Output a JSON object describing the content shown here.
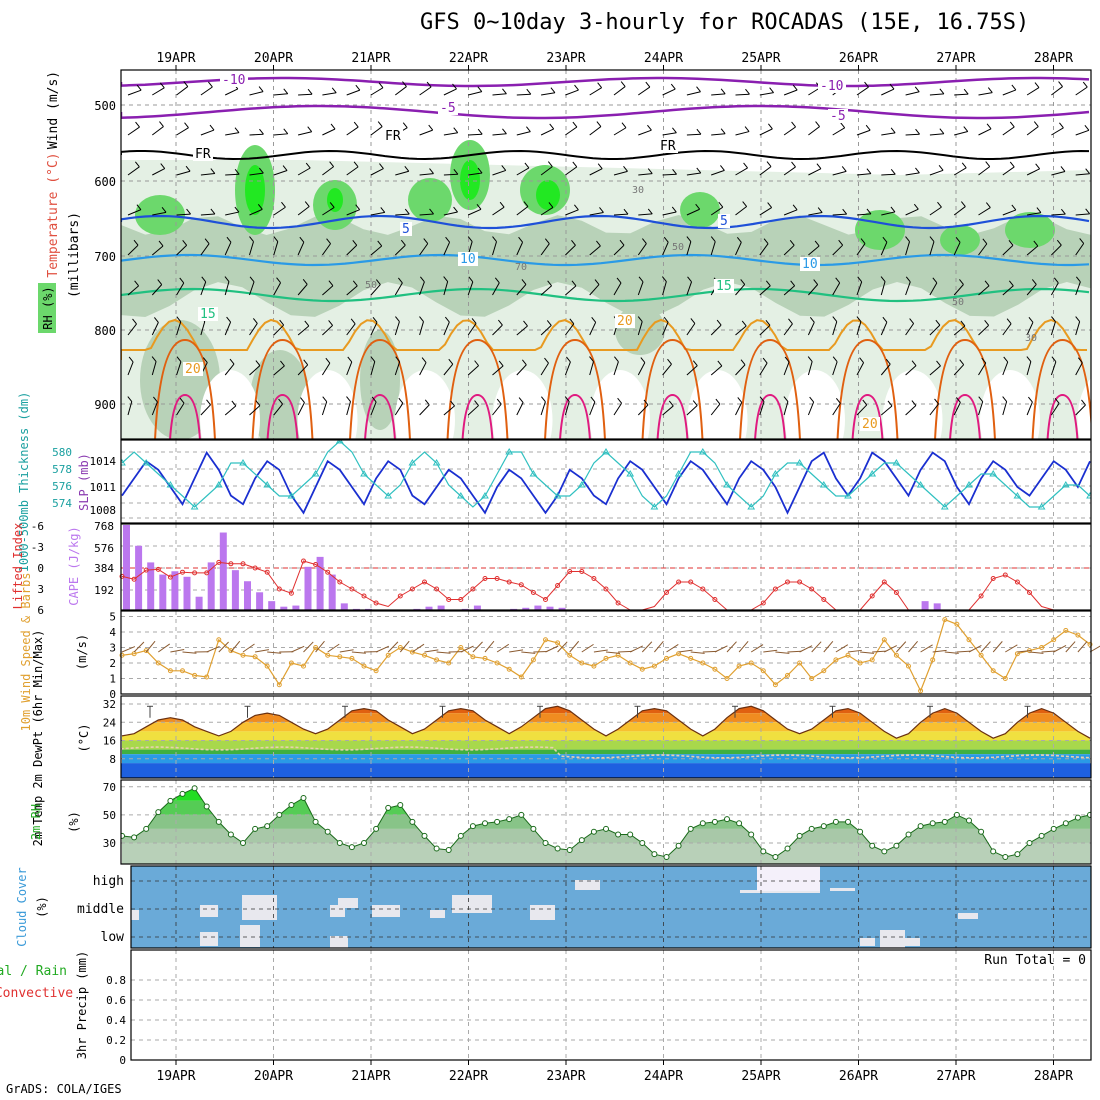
{
  "title": "GFS 0~10day 3-hourly for ROCADAS (15E, 16.75S)",
  "credit": "GrADS: COLA/IGES",
  "dates": [
    "19APR",
    "20APR",
    "21APR",
    "22APR",
    "23APR",
    "24APR",
    "25APR",
    "26APR",
    "27APR",
    "28APR"
  ],
  "colors": {
    "rh_light": "#e4f0e4",
    "rh_mid": "#b8d2b8",
    "rh_green": "#6cd86c",
    "rh_bright": "#22e822",
    "t_m10": "#8a1fb0",
    "t_m5": "#8a1fb0",
    "t_5": "#1e50d8",
    "t_10": "#2a9ae6",
    "t_15": "#20c080",
    "t_20": "#e89a20",
    "t_25": "#e06010",
    "t_30": "#e01a80",
    "cape": "#bb77ee",
    "li": "#e03030",
    "wind": "#e0a030",
    "slp": "#1a2fd0",
    "thk": "#30c0c0",
    "rh2m": "#22cc22",
    "cloud": "#6aaad8",
    "cloud_gap": "#e8e8ee"
  },
  "panels": {
    "upper": {
      "ylabel_main": "(millibars)",
      "ylabel_wind": "Wind (m/s)",
      "ylabel_temp": "Temperature (°C)",
      "ylabel_rh": "RH (%)",
      "yticks": [
        "500",
        "600",
        "700",
        "800",
        "900"
      ],
      "contour_labels": [
        "-10",
        "-5",
        "FR",
        "5",
        "10",
        "15",
        "20",
        "30",
        "50",
        "70"
      ]
    },
    "thickness": {
      "ylabel_left": "1000-500mb Thickness (dm)",
      "ylabel_right": "SLP (mb)",
      "left_ticks": [
        "580",
        "578",
        "576",
        "574"
      ],
      "right_ticks": [
        "1014",
        "1011",
        "1008"
      ]
    },
    "cape": {
      "ylabel_left": "Lifted Index",
      "ylabel_right": "CAPE (J/kg)",
      "li_ticks": [
        "-6",
        "-3",
        "0",
        "3",
        "6"
      ],
      "cape_ticks": [
        "768",
        "576",
        "384",
        "192"
      ]
    },
    "wind": {
      "ylabel": "10m Wind Speed & Barbs",
      "unit": "(m/s)",
      "ticks": [
        "5",
        "4",
        "3",
        "2",
        "1",
        "0"
      ]
    },
    "temp": {
      "ylabel": "2m Temp 2m DewPt (6hr Min/Max)",
      "unit": "(°C)",
      "ticks": [
        "32",
        "24",
        "16",
        "8"
      ]
    },
    "rh": {
      "ylabel": "2m RH",
      "unit": "(%)",
      "ticks": [
        "70",
        "50",
        "30"
      ]
    },
    "cloud": {
      "ylabel": "Cloud Cover",
      "unit": "(%)",
      "levels": [
        "high",
        "middle",
        "low"
      ]
    },
    "precip": {
      "ylabel_total": "Total / Rain",
      "ylabel_conv": "Convective",
      "ylabel_axis": "3hr Precip (mm)",
      "ticks": [
        "0.8",
        "0.6",
        "0.4",
        "0.2",
        "0"
      ],
      "run_total": "Run Total = 0"
    }
  },
  "chart_data": {
    "type": "line",
    "x": [
      "19APR",
      "20APR",
      "21APR",
      "22APR",
      "23APR",
      "24APR",
      "25APR",
      "26APR",
      "27APR",
      "28APR"
    ],
    "slp_mb": [
      1010,
      1012,
      1014,
      1013,
      1011,
      1009,
      1012,
      1015,
      1013,
      1010,
      1009,
      1012,
      1014,
      1013,
      1010,
      1008,
      1011,
      1014,
      1013,
      1011,
      1009,
      1012,
      1014,
      1013,
      1010,
      1009,
      1011,
      1013,
      1012,
      1010,
      1008,
      1011,
      1013,
      1012,
      1010,
      1008,
      1010,
      1013,
      1012,
      1010,
      1009,
      1012,
      1014,
      1013,
      1011,
      1009,
      1012,
      1014,
      1013,
      1011,
      1009,
      1012,
      1014,
      1013,
      1011,
      1008,
      1011,
      1014,
      1015,
      1012,
      1010,
      1012,
      1015,
      1014,
      1012,
      1010,
      1013,
      1015,
      1014,
      1011,
      1009,
      1012,
      1014,
      1013,
      1011,
      1010,
      1012,
      1014,
      1013,
      1011,
      1014
    ],
    "thickness_dm": [
      579,
      580,
      579,
      578,
      577,
      576,
      575,
      576,
      577,
      579,
      579,
      578,
      577,
      576,
      576,
      577,
      578,
      580,
      581,
      580,
      578,
      577,
      576,
      577,
      579,
      580,
      579,
      577,
      576,
      575,
      576,
      578,
      580,
      580,
      578,
      577,
      576,
      576,
      577,
      579,
      580,
      579,
      578,
      576,
      575,
      576,
      578,
      580,
      580,
      579,
      577,
      576,
      575,
      576,
      578,
      579,
      579,
      578,
      577,
      576,
      576,
      577,
      578,
      579,
      579,
      578,
      577,
      576,
      575,
      576,
      577,
      578,
      578,
      577,
      576,
      575,
      575,
      576,
      577,
      577,
      576,
      574,
      575
    ],
    "cape_jkg": [
      768,
      580,
      430,
      320,
      350,
      300,
      120,
      430,
      700,
      360,
      260,
      160,
      80,
      30,
      40,
      390,
      480,
      320,
      60,
      10,
      10,
      0,
      0,
      0,
      10,
      30,
      40,
      0,
      10,
      40,
      0,
      0,
      10,
      20,
      40,
      30,
      20,
      0,
      0,
      0,
      0,
      0,
      0,
      0,
      0,
      0,
      0,
      0,
      0,
      0,
      0,
      0,
      0,
      0,
      0,
      0,
      0,
      0,
      0,
      0,
      0,
      0,
      0,
      0,
      0,
      0,
      80,
      60,
      0,
      0,
      0,
      0,
      0,
      0,
      0,
      0,
      0,
      0,
      0,
      0,
      0,
      0,
      0
    ],
    "lifted_index": [
      1.2,
      1.6,
      0.3,
      0.2,
      1.3,
      0.6,
      0.7,
      0.7,
      -0.8,
      -0.6,
      -0.6,
      0.0,
      0.6,
      3.0,
      3.6,
      -1.0,
      -0.5,
      0.6,
      2.0,
      3.0,
      4.0,
      5.0,
      5.5,
      4.0,
      3.0,
      2.0,
      3.0,
      4.5,
      4.5,
      3.0,
      1.5,
      1.5,
      2.0,
      2.4,
      3.5,
      4.5,
      2.5,
      0.5,
      0.5,
      1.5,
      3.0,
      5.0,
      6.0,
      6.0,
      5.5,
      3.5,
      2.0,
      2.0,
      3.0,
      4.5,
      6.0,
      6.0,
      6.0,
      5.0,
      3.0,
      2.0,
      2.0,
      3.0,
      4.5,
      6.0,
      6.0,
      6.0,
      4.0,
      2.0,
      3.5,
      6.0,
      6.0,
      6.0,
      6.0,
      6.0,
      6.0,
      4.0,
      1.5,
      1.0,
      2.0,
      3.5,
      5.5,
      6.0,
      6.0,
      6.0,
      6.0,
      4.5,
      2.0
    ],
    "wind10m_ms": [
      2.5,
      2.6,
      2.8,
      2.0,
      1.5,
      1.5,
      1.2,
      1.1,
      3.5,
      2.8,
      2.5,
      2.4,
      1.8,
      0.6,
      2.0,
      1.8,
      3.0,
      2.5,
      2.4,
      2.3,
      1.8,
      1.5,
      2.5,
      3.0,
      2.7,
      2.5,
      2.2,
      2.0,
      3.0,
      2.4,
      2.3,
      2.0,
      1.6,
      1.1,
      2.2,
      3.5,
      3.3,
      2.5,
      2.0,
      1.8,
      2.3,
      2.5,
      2.0,
      1.6,
      1.8,
      2.3,
      2.6,
      2.3,
      2.0,
      1.6,
      1.0,
      1.8,
      2.0,
      1.5,
      0.6,
      1.2,
      2.0,
      1.0,
      1.5,
      2.2,
      2.5,
      2.0,
      2.2,
      3.5,
      2.5,
      1.8,
      0.2,
      2.2,
      4.8,
      4.5,
      3.5,
      2.5,
      1.5,
      1.0,
      2.6,
      2.8,
      3.0,
      3.5,
      4.1,
      3.8,
      3.2,
      2.6,
      3.0,
      3.5,
      3.0,
      2.7,
      3.8,
      4.8,
      3.5,
      3.0,
      2.6,
      2.2,
      2.4,
      2.8,
      3.0,
      2.5,
      2.8
    ],
    "temp2m_c": [
      18,
      19,
      22,
      25,
      26,
      25,
      22,
      20,
      18,
      20,
      24,
      27,
      28,
      27,
      24,
      21,
      19,
      21,
      25,
      29,
      30,
      29,
      25,
      22,
      19,
      21,
      25,
      29,
      30,
      29,
      25,
      22,
      19,
      22,
      26,
      30,
      31,
      29,
      25,
      21,
      18,
      21,
      25,
      29,
      30,
      29,
      25,
      21,
      18,
      21,
      26,
      30,
      31,
      29,
      25,
      21,
      19,
      21,
      25,
      29,
      30,
      28,
      24,
      20,
      17,
      19,
      24,
      28,
      30,
      28,
      24,
      20,
      17,
      19,
      24,
      28,
      30,
      28,
      24,
      20,
      17,
      16
    ],
    "rh2m_pct": [
      35,
      34,
      40,
      52,
      60,
      65,
      69,
      56,
      45,
      36,
      30,
      40,
      42,
      50,
      57,
      62,
      45,
      38,
      30,
      27,
      30,
      40,
      55,
      57,
      45,
      35,
      26,
      25,
      35,
      42,
      44,
      45,
      47,
      50,
      40,
      30,
      26,
      25,
      32,
      38,
      40,
      36,
      36,
      30,
      22,
      20,
      28,
      40,
      44,
      45,
      47,
      44,
      36,
      24,
      20,
      26,
      35,
      40,
      42,
      45,
      45,
      38,
      28,
      24,
      28,
      36,
      42,
      44,
      45,
      50,
      46,
      38,
      24,
      20,
      22,
      30,
      35,
      40,
      44,
      48,
      50
    ]
  }
}
